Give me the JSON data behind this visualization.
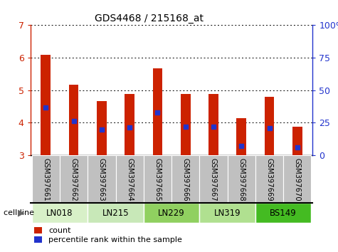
{
  "title": "GDS4468 / 215168_at",
  "samples": [
    "GSM397661",
    "GSM397662",
    "GSM397663",
    "GSM397664",
    "GSM397665",
    "GSM397666",
    "GSM397667",
    "GSM397668",
    "GSM397669",
    "GSM397670"
  ],
  "cell_line_groups": [
    {
      "name": "LN018",
      "indices": [
        0,
        1
      ],
      "color": "#d8f0c8"
    },
    {
      "name": "LN215",
      "indices": [
        2,
        3
      ],
      "color": "#c8e8b8"
    },
    {
      "name": "LN229",
      "indices": [
        4,
        5
      ],
      "color": "#90d060"
    },
    {
      "name": "LN319",
      "indices": [
        6,
        7
      ],
      "color": "#b0e090"
    },
    {
      "name": "BS149",
      "indices": [
        8,
        9
      ],
      "color": "#44bb22"
    }
  ],
  "count_values": [
    6.08,
    5.17,
    4.66,
    4.88,
    5.67,
    4.89,
    4.87,
    4.13,
    4.8,
    3.88
  ],
  "percentile_values": [
    4.47,
    4.05,
    3.78,
    3.86,
    4.32,
    3.88,
    3.87,
    3.28,
    3.83,
    3.23
  ],
  "ylim_left": [
    3.0,
    7.0
  ],
  "yticks_left": [
    3,
    4,
    5,
    6,
    7
  ],
  "ylim_right": [
    0,
    100
  ],
  "yticks_right": [
    0,
    25,
    50,
    75,
    100
  ],
  "bar_color": "#cc2200",
  "percentile_color": "#2233cc",
  "bar_width": 0.35,
  "left_tick_color": "#cc2200",
  "right_tick_color": "#2233cc",
  "background_sample": "#c0c0c0"
}
